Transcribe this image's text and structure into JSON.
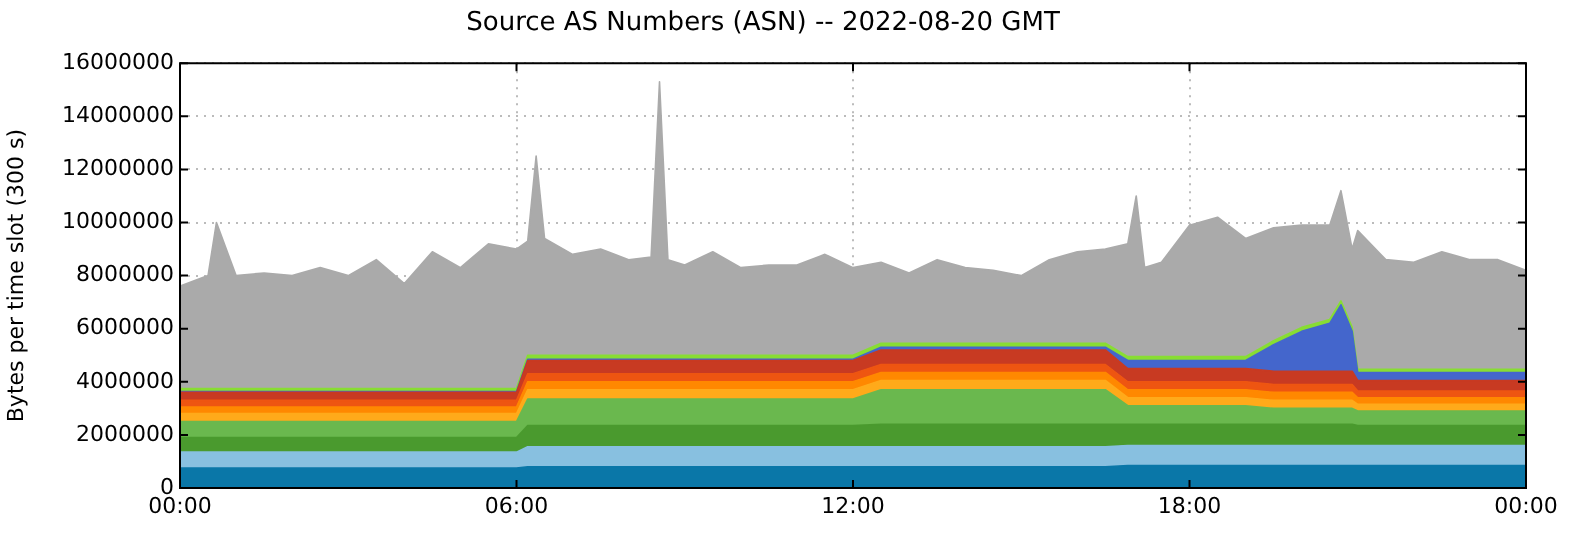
{
  "chart_data": {
    "type": "area",
    "stacked": true,
    "title": "Source AS Numbers (ASN) -- 2022-08-20 GMT",
    "ylabel": "Bytes per time slot (300 s)",
    "x": [
      0,
      0.5,
      0.65,
      1,
      1.5,
      2,
      2.5,
      3,
      3.5,
      4,
      4.5,
      5,
      5.5,
      6,
      6.2,
      6.35,
      6.5,
      7,
      7.5,
      8,
      8.4,
      8.55,
      8.7,
      9,
      9.5,
      10,
      10.5,
      11,
      11.5,
      12,
      12.5,
      13,
      13.5,
      14,
      14.5,
      15,
      15.5,
      16,
      16.5,
      16.9,
      17.05,
      17.2,
      17.5,
      18,
      18.5,
      19,
      19.5,
      20,
      20.5,
      20.7,
      20.9,
      21,
      21.5,
      22,
      22.5,
      23,
      23.5,
      24
    ],
    "series": [
      {
        "color": "#0a77a8",
        "values": [
          750000,
          750000,
          750000,
          750000,
          750000,
          750000,
          750000,
          750000,
          750000,
          750000,
          750000,
          750000,
          750000,
          750000,
          800000,
          800000,
          800000,
          800000,
          800000,
          800000,
          800000,
          800000,
          800000,
          800000,
          800000,
          800000,
          800000,
          800000,
          800000,
          800000,
          800000,
          800000,
          800000,
          800000,
          800000,
          800000,
          800000,
          800000,
          800000,
          850000,
          850000,
          850000,
          850000,
          850000,
          850000,
          850000,
          850000,
          850000,
          850000,
          850000,
          850000,
          850000,
          850000,
          850000,
          850000,
          850000,
          850000,
          850000
        ]
      },
      {
        "color": "#88c0e0",
        "values": [
          600000,
          600000,
          600000,
          600000,
          600000,
          600000,
          600000,
          600000,
          600000,
          600000,
          600000,
          600000,
          600000,
          600000,
          750000,
          750000,
          750000,
          750000,
          750000,
          750000,
          750000,
          750000,
          750000,
          750000,
          750000,
          750000,
          750000,
          750000,
          750000,
          750000,
          750000,
          750000,
          750000,
          750000,
          750000,
          750000,
          750000,
          750000,
          750000,
          750000,
          750000,
          750000,
          750000,
          750000,
          750000,
          750000,
          750000,
          750000,
          750000,
          750000,
          750000,
          750000,
          750000,
          750000,
          750000,
          750000,
          750000,
          750000
        ]
      },
      {
        "color": "#4a9a2e",
        "values": [
          550000,
          550000,
          550000,
          550000,
          550000,
          550000,
          550000,
          550000,
          550000,
          550000,
          550000,
          550000,
          550000,
          550000,
          800000,
          800000,
          800000,
          800000,
          800000,
          800000,
          800000,
          800000,
          800000,
          800000,
          800000,
          800000,
          800000,
          800000,
          800000,
          800000,
          850000,
          850000,
          850000,
          850000,
          850000,
          850000,
          850000,
          850000,
          850000,
          800000,
          800000,
          800000,
          800000,
          800000,
          800000,
          800000,
          800000,
          800000,
          800000,
          800000,
          800000,
          750000,
          750000,
          750000,
          750000,
          750000,
          750000,
          750000
        ]
      },
      {
        "color": "#6ab84e",
        "values": [
          600000,
          600000,
          600000,
          600000,
          600000,
          600000,
          600000,
          600000,
          600000,
          600000,
          600000,
          600000,
          600000,
          600000,
          1000000,
          1000000,
          1000000,
          1000000,
          1000000,
          1000000,
          1000000,
          1000000,
          1000000,
          1000000,
          1000000,
          1000000,
          1000000,
          1000000,
          1000000,
          1000000,
          1300000,
          1300000,
          1300000,
          1300000,
          1300000,
          1300000,
          1300000,
          1300000,
          1300000,
          700000,
          700000,
          700000,
          700000,
          700000,
          700000,
          700000,
          600000,
          600000,
          600000,
          600000,
          600000,
          550000,
          550000,
          550000,
          550000,
          550000,
          550000,
          550000
        ]
      },
      {
        "color": "#ffaa1a",
        "values": [
          300000,
          300000,
          300000,
          300000,
          300000,
          300000,
          300000,
          300000,
          300000,
          300000,
          300000,
          300000,
          300000,
          300000,
          350000,
          350000,
          350000,
          350000,
          350000,
          350000,
          350000,
          350000,
          350000,
          350000,
          350000,
          350000,
          350000,
          350000,
          350000,
          350000,
          350000,
          350000,
          350000,
          350000,
          350000,
          350000,
          350000,
          350000,
          350000,
          300000,
          300000,
          300000,
          300000,
          300000,
          300000,
          300000,
          300000,
          300000,
          300000,
          300000,
          300000,
          250000,
          250000,
          250000,
          250000,
          250000,
          250000,
          250000
        ]
      },
      {
        "color": "#ff8800",
        "values": [
          250000,
          250000,
          250000,
          250000,
          250000,
          250000,
          250000,
          250000,
          250000,
          250000,
          250000,
          250000,
          250000,
          250000,
          300000,
          300000,
          300000,
          300000,
          300000,
          300000,
          300000,
          300000,
          300000,
          300000,
          300000,
          300000,
          300000,
          300000,
          300000,
          300000,
          300000,
          300000,
          300000,
          300000,
          300000,
          300000,
          300000,
          300000,
          300000,
          300000,
          300000,
          300000,
          300000,
          300000,
          300000,
          300000,
          300000,
          300000,
          300000,
          300000,
          300000,
          250000,
          250000,
          250000,
          250000,
          250000,
          250000,
          250000
        ]
      },
      {
        "color": "#ee5511",
        "values": [
          250000,
          250000,
          250000,
          250000,
          250000,
          250000,
          250000,
          250000,
          250000,
          250000,
          250000,
          250000,
          250000,
          250000,
          300000,
          300000,
          300000,
          300000,
          300000,
          300000,
          300000,
          300000,
          300000,
          300000,
          300000,
          300000,
          300000,
          300000,
          300000,
          300000,
          300000,
          300000,
          300000,
          300000,
          300000,
          300000,
          300000,
          300000,
          300000,
          300000,
          300000,
          300000,
          300000,
          300000,
          300000,
          300000,
          300000,
          300000,
          300000,
          300000,
          300000,
          250000,
          250000,
          250000,
          250000,
          250000,
          250000,
          250000
        ]
      },
      {
        "color": "#c83a22",
        "values": [
          300000,
          300000,
          300000,
          300000,
          300000,
          300000,
          300000,
          300000,
          300000,
          300000,
          300000,
          300000,
          300000,
          300000,
          500000,
          500000,
          500000,
          500000,
          500000,
          500000,
          500000,
          500000,
          500000,
          500000,
          500000,
          500000,
          500000,
          500000,
          500000,
          500000,
          550000,
          550000,
          550000,
          550000,
          550000,
          550000,
          550000,
          550000,
          550000,
          500000,
          500000,
          500000,
          500000,
          500000,
          500000,
          500000,
          500000,
          500000,
          500000,
          500000,
          500000,
          400000,
          400000,
          400000,
          400000,
          400000,
          400000,
          400000
        ]
      },
      {
        "color": "#4466cc",
        "values": [
          30000,
          30000,
          30000,
          30000,
          30000,
          30000,
          30000,
          30000,
          30000,
          30000,
          30000,
          30000,
          30000,
          30000,
          50000,
          50000,
          50000,
          50000,
          50000,
          50000,
          50000,
          50000,
          50000,
          50000,
          50000,
          50000,
          50000,
          50000,
          50000,
          50000,
          100000,
          100000,
          100000,
          100000,
          100000,
          100000,
          100000,
          100000,
          100000,
          300000,
          300000,
          300000,
          300000,
          300000,
          300000,
          300000,
          1000000,
          1500000,
          1800000,
          2500000,
          1500000,
          300000,
          300000,
          300000,
          300000,
          300000,
          300000,
          300000
        ]
      },
      {
        "color": "#88dd33",
        "values": [
          120000,
          120000,
          120000,
          120000,
          120000,
          120000,
          120000,
          120000,
          120000,
          120000,
          120000,
          120000,
          120000,
          120000,
          150000,
          150000,
          150000,
          150000,
          150000,
          150000,
          150000,
          150000,
          150000,
          150000,
          150000,
          150000,
          150000,
          150000,
          150000,
          150000,
          150000,
          150000,
          150000,
          150000,
          150000,
          150000,
          150000,
          150000,
          150000,
          150000,
          150000,
          150000,
          150000,
          150000,
          150000,
          150000,
          150000,
          150000,
          150000,
          150000,
          150000,
          120000,
          120000,
          120000,
          120000,
          120000,
          120000,
          120000
        ]
      },
      {
        "color": "#aaaaaa",
        "values": [
          3850000,
          4250000,
          6250000,
          4250000,
          4350000,
          4250000,
          4550000,
          4250000,
          4850000,
          3950000,
          5150000,
          4550000,
          5450000,
          5250000,
          4300000,
          7500000,
          4400000,
          3800000,
          4000000,
          3600000,
          3700000,
          10300000,
          3600000,
          3400000,
          3900000,
          3300000,
          3400000,
          3400000,
          3800000,
          3300000,
          3050000,
          2650000,
          3150000,
          2850000,
          2750000,
          2550000,
          3150000,
          3450000,
          3550000,
          4250000,
          6050000,
          3350000,
          3550000,
          4950000,
          5250000,
          4450000,
          4250000,
          3850000,
          3550000,
          4150000,
          2950000,
          5230000,
          4130000,
          4030000,
          4430000,
          4130000,
          4130000,
          3730000
        ]
      }
    ],
    "xlim": [
      0,
      24
    ],
    "xticks": [
      {
        "value": 0,
        "label": "00:00"
      },
      {
        "value": 6,
        "label": "06:00"
      },
      {
        "value": 12,
        "label": "12:00"
      },
      {
        "value": 18,
        "label": "18:00"
      },
      {
        "value": 24,
        "label": "00:00"
      }
    ],
    "ylim": [
      0,
      16000000
    ],
    "yticks": [
      0,
      2000000,
      4000000,
      6000000,
      8000000,
      10000000,
      12000000,
      14000000,
      16000000
    ],
    "grid": true,
    "legend": false
  }
}
